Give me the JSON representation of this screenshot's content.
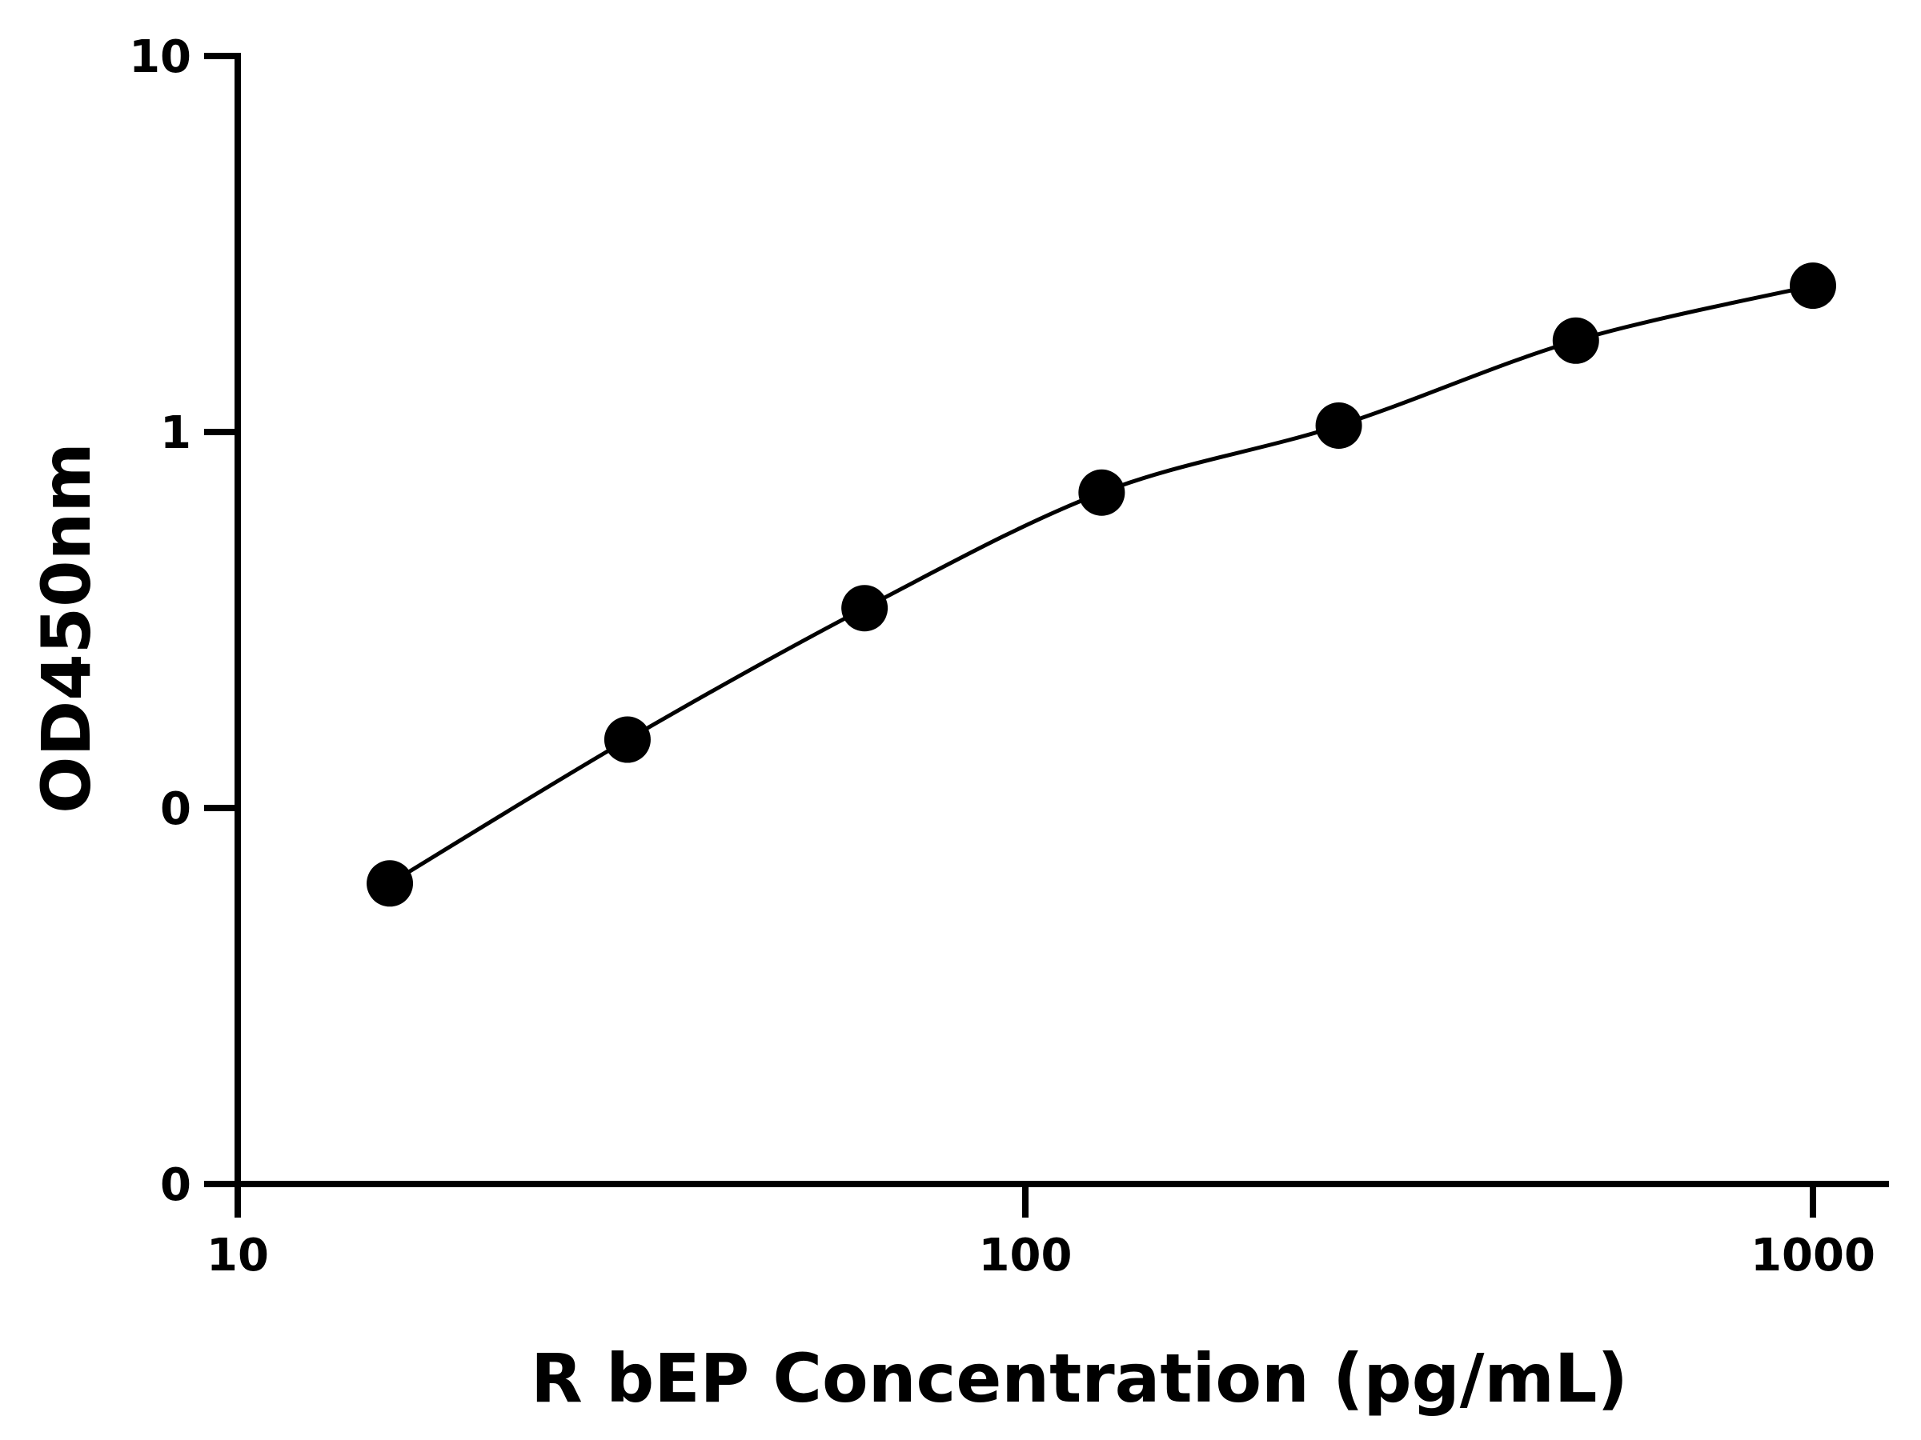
{
  "chart_data": {
    "type": "scatter",
    "title": "",
    "xlabel": "R bEP Concentration (pg/mL)",
    "ylabel": "OD450nm",
    "x_scale": "log",
    "y_scale": "log",
    "xlim": [
      10,
      1200
    ],
    "x_ticks": [
      {
        "value": 10,
        "label": "10"
      },
      {
        "value": 100,
        "label": "100"
      },
      {
        "value": 1000,
        "label": "1000"
      }
    ],
    "y_ticks": [
      {
        "value": 0.01,
        "label": "0"
      },
      {
        "value": 0.1,
        "label": "0"
      },
      {
        "value": 1,
        "label": "1"
      },
      {
        "value": 10,
        "label": "10"
      }
    ],
    "grid": false,
    "legend": "none",
    "points": [
      {
        "x": 15.6,
        "y": 0.063
      },
      {
        "x": 31.25,
        "y": 0.152
      },
      {
        "x": 62.5,
        "y": 0.34
      },
      {
        "x": 125,
        "y": 0.69
      },
      {
        "x": 250,
        "y": 1.04
      },
      {
        "x": 500,
        "y": 1.75
      },
      {
        "x": 1000,
        "y": 2.45
      }
    ],
    "fit_curve": true,
    "colors": {
      "marker": "#000000",
      "line": "#000000",
      "axis": "#000000"
    }
  }
}
